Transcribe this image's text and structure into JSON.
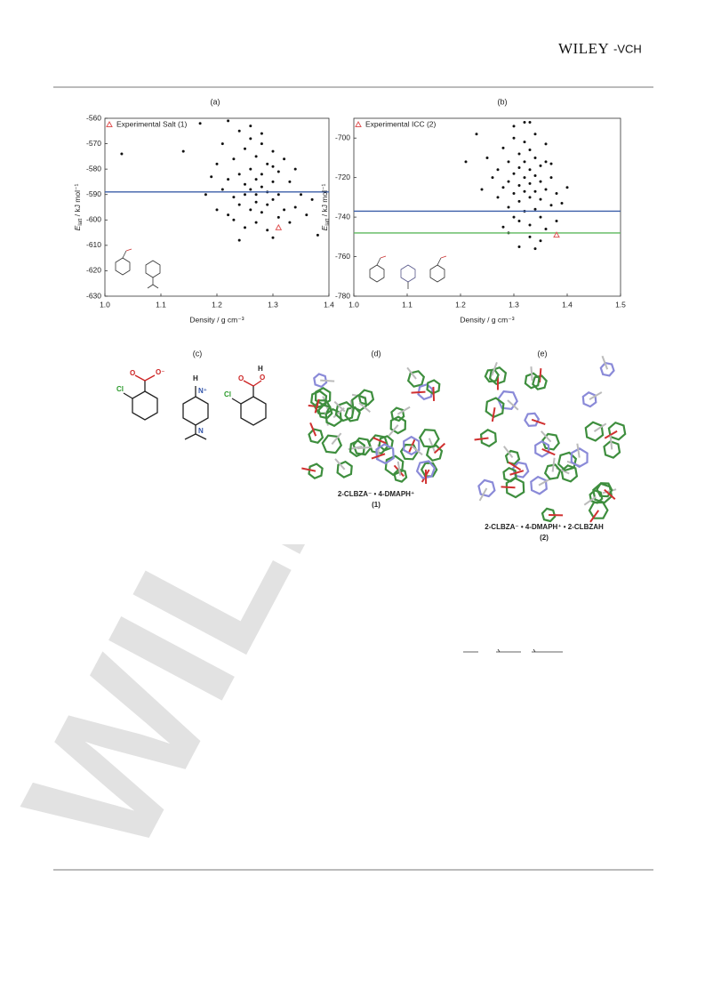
{
  "header": {
    "logo_main": "WILEY",
    "logo_suffix": "-VCH"
  },
  "watermark": "WILEY",
  "chart_data": [
    {
      "type": "scatter",
      "panel": "(a)",
      "legend": "Experimental Salt (1)",
      "xlabel": "Density / g cm⁻³",
      "ylabel": {
        "symbol": "E",
        "subscript": "latt",
        "unit": " / kJ mol⁻¹"
      },
      "xlim": [
        1.0,
        1.4
      ],
      "ylim": [
        -630,
        -560
      ],
      "xticks": [
        {
          "value": 1.0,
          "label": "1.0"
        },
        1.1,
        1.2,
        1.3,
        1.4
      ],
      "yticks": [
        -630,
        -620,
        -610,
        -600,
        -590,
        -580,
        -570,
        -560
      ],
      "color": "#111111",
      "x": [
        1.03,
        1.14,
        1.17,
        1.18,
        1.19,
        1.2,
        1.2,
        1.21,
        1.21,
        1.22,
        1.22,
        1.23,
        1.23,
        1.23,
        1.24,
        1.24,
        1.24,
        1.25,
        1.25,
        1.25,
        1.25,
        1.26,
        1.26,
        1.26,
        1.26,
        1.27,
        1.27,
        1.27,
        1.27,
        1.27,
        1.28,
        1.28,
        1.28,
        1.28,
        1.29,
        1.29,
        1.29,
        1.29,
        1.3,
        1.3,
        1.3,
        1.3,
        1.31,
        1.31,
        1.31,
        1.32,
        1.32,
        1.33,
        1.33,
        1.34,
        1.34,
        1.35,
        1.36,
        1.37,
        1.38,
        1.22,
        1.26,
        1.28,
        1.3,
        1.24
      ],
      "y": [
        -574,
        -573,
        -562,
        -590,
        -583,
        -578,
        -596,
        -570,
        -588,
        -584,
        -598,
        -576,
        -591,
        -600,
        -565,
        -582,
        -594,
        -572,
        -586,
        -590,
        -603,
        -568,
        -580,
        -588,
        -596,
        -575,
        -584,
        -590,
        -593,
        -601,
        -570,
        -582,
        -587,
        -597,
        -578,
        -589,
        -594,
        -604,
        -573,
        -585,
        -592,
        -607,
        -581,
        -590,
        -599,
        -576,
        -596,
        -585,
        -601,
        -580,
        -595,
        -590,
        -598,
        -592,
        -606,
        -561,
        -563,
        -566,
        -579,
        -608
      ],
      "experimental": {
        "x": 1.31,
        "y": -603,
        "color": "#e05555"
      },
      "hlines": [
        {
          "value": -589,
          "color": "#3b5ea8"
        }
      ]
    },
    {
      "type": "scatter",
      "panel": "(b)",
      "legend": "Experimental ICC (2)",
      "xlabel": "Density / g cm⁻³",
      "ylabel": {
        "symbol": "E",
        "subscript": "latt",
        "unit": " / kJ mol⁻¹"
      },
      "xlim": [
        1.0,
        1.5
      ],
      "ylim": [
        -780,
        -690
      ],
      "xticks": [
        {
          "value": 1.0,
          "label": "1.0"
        },
        1.1,
        1.2,
        1.3,
        1.4,
        1.5
      ],
      "yticks": [
        -780,
        -760,
        -740,
        -720,
        -700
      ],
      "color": "#111111",
      "x": [
        1.21,
        1.23,
        1.24,
        1.25,
        1.26,
        1.27,
        1.27,
        1.28,
        1.28,
        1.29,
        1.29,
        1.29,
        1.3,
        1.3,
        1.3,
        1.3,
        1.31,
        1.31,
        1.31,
        1.31,
        1.31,
        1.32,
        1.32,
        1.32,
        1.32,
        1.32,
        1.33,
        1.33,
        1.33,
        1.33,
        1.33,
        1.34,
        1.34,
        1.34,
        1.34,
        1.35,
        1.35,
        1.35,
        1.35,
        1.36,
        1.36,
        1.36,
        1.37,
        1.37,
        1.38,
        1.38,
        1.39,
        1.4,
        1.3,
        1.32,
        1.34,
        1.36,
        1.28,
        1.33,
        1.35,
        1.31,
        1.33,
        1.37,
        1.29,
        1.34
      ],
      "y": [
        -712,
        -698,
        -726,
        -710,
        -720,
        -716,
        -730,
        -705,
        -725,
        -712,
        -722,
        -735,
        -700,
        -718,
        -728,
        -740,
        -708,
        -715,
        -724,
        -732,
        -742,
        -702,
        -712,
        -720,
        -727,
        -737,
        -706,
        -716,
        -723,
        -730,
        -744,
        -710,
        -719,
        -727,
        -736,
        -714,
        -722,
        -731,
        -740,
        -712,
        -726,
        -746,
        -720,
        -734,
        -728,
        -742,
        -733,
        -725,
        -694,
        -692,
        -698,
        -703,
        -745,
        -750,
        -752,
        -755,
        -692,
        -713,
        -748,
        -756
      ],
      "experimental": {
        "x": 1.38,
        "y": -749,
        "color": "#e05555"
      },
      "hlines": [
        {
          "value": -737,
          "color": "#3b5ea8"
        },
        {
          "value": -748,
          "color": "#5cb85c"
        }
      ]
    }
  ],
  "panels": [
    {
      "label": "(c)",
      "atoms": [
        "Cl",
        "O",
        "O⁻",
        "H",
        "N⁺",
        "N",
        "Cl",
        "O",
        "O",
        "H"
      ]
    },
    {
      "label": "(d)",
      "caption": "2-CLBZA⁻ • 4-DMAPH⁺",
      "number": "(1)"
    },
    {
      "label": "(e)",
      "caption": "2-CLBZA⁻ • 4-DMAPH⁺ • 2-CLBZAH",
      "number": "(2)"
    }
  ]
}
